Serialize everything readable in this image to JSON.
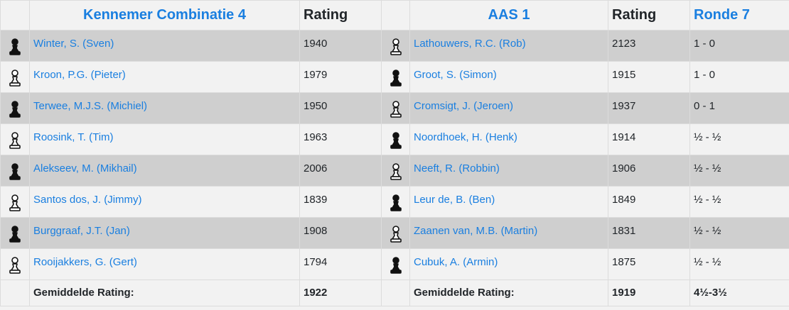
{
  "header": {
    "team_home": "Kennemer Combinatie 4",
    "rating_label_home": "Rating",
    "team_away": "AAS 1",
    "rating_label_away": "Rating",
    "round": "Ronde 7"
  },
  "boards": [
    {
      "home_color": "black",
      "home_name": "Winter, S. (Sven)",
      "home_rating": "1940",
      "away_color": "white",
      "away_name": "Lathouwers, R.C. (Rob)",
      "away_rating": "2123",
      "result": "1 - 0"
    },
    {
      "home_color": "white",
      "home_name": "Kroon, P.G. (Pieter)",
      "home_rating": "1979",
      "away_color": "black",
      "away_name": "Groot, S. (Simon)",
      "away_rating": "1915",
      "result": "1 - 0"
    },
    {
      "home_color": "black",
      "home_name": "Terwee, M.J.S. (Michiel)",
      "home_rating": "1950",
      "away_color": "white",
      "away_name": "Cromsigt, J. (Jeroen)",
      "away_rating": "1937",
      "result": "0 - 1"
    },
    {
      "home_color": "white",
      "home_name": "Roosink, T. (Tim)",
      "home_rating": "1963",
      "away_color": "black",
      "away_name": "Noordhoek, H. (Henk)",
      "away_rating": "1914",
      "result": "½ - ½"
    },
    {
      "home_color": "black",
      "home_name": "Alekseev, M. (Mikhail)",
      "home_rating": "2006",
      "away_color": "white",
      "away_name": "Neeft, R. (Robbin)",
      "away_rating": "1906",
      "result": "½ - ½"
    },
    {
      "home_color": "white",
      "home_name": "Santos dos, J. (Jimmy)",
      "home_rating": "1839",
      "away_color": "black",
      "away_name": "Leur de, B. (Ben)",
      "away_rating": "1849",
      "result": "½ - ½"
    },
    {
      "home_color": "black",
      "home_name": "Burggraaf, J.T. (Jan)",
      "home_rating": "1908",
      "away_color": "white",
      "away_name": "Zaanen van, M.B. (Martin)",
      "away_rating": "1831",
      "result": "½ - ½"
    },
    {
      "home_color": "white",
      "home_name": "Rooijakkers, G. (Gert)",
      "home_rating": "1794",
      "away_color": "black",
      "away_name": "Cubuk, A. (Armin)",
      "away_rating": "1875",
      "result": "½ - ½"
    }
  ],
  "footer": {
    "avg_label_home": "Gemiddelde Rating:",
    "avg_home": "1922",
    "avg_label_away": "Gemiddelde Rating:",
    "avg_away": "1919",
    "total_result": "4½-3½"
  },
  "icons": {
    "black": "black-pawn-icon",
    "white": "white-pawn-icon"
  },
  "colors": {
    "link": "#1a7fe0",
    "row_shaded": "#cfcfcf",
    "row_light": "#f2f2f2",
    "border": "#dcdcdc"
  }
}
